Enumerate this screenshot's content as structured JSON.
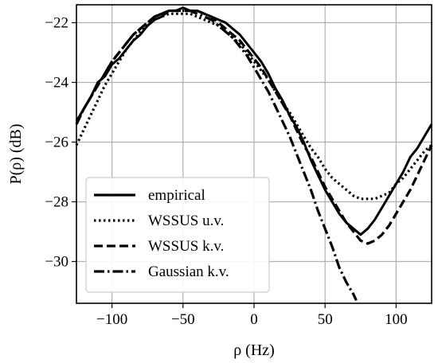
{
  "chart_data": {
    "type": "line",
    "xlabel": "ρ (Hz)",
    "ylabel": "P(ρ) (dB)",
    "xlim": [
      -125,
      125
    ],
    "ylim": [
      -31.4,
      -21.4
    ],
    "xticks": [
      -100,
      -50,
      0,
      50,
      100
    ],
    "xtick_labels": [
      "−100",
      "−50",
      "0",
      "50",
      "100"
    ],
    "yticks": [
      -22,
      -24,
      -26,
      -28,
      -30
    ],
    "ytick_labels": [
      "−22",
      "−24",
      "−26",
      "−28",
      "−30"
    ],
    "grid": true,
    "legend_position": "lower-left",
    "series": [
      {
        "name": "empirical",
        "style": "solid",
        "color": "#000000",
        "x": [
          -125,
          -120,
          -115,
          -110,
          -105,
          -100,
          -95,
          -90,
          -85,
          -80,
          -75,
          -70,
          -65,
          -60,
          -55,
          -50,
          -45,
          -40,
          -35,
          -30,
          -25,
          -20,
          -15,
          -10,
          -5,
          0,
          5,
          10,
          15,
          20,
          25,
          30,
          35,
          40,
          45,
          50,
          55,
          60,
          65,
          70,
          75,
          80,
          85,
          90,
          95,
          100,
          105,
          110,
          115,
          120,
          125
        ],
        "y": [
          -25.3,
          -24.9,
          -24.5,
          -24.0,
          -23.8,
          -23.4,
          -23.2,
          -22.9,
          -22.6,
          -22.4,
          -22.1,
          -21.9,
          -21.8,
          -21.6,
          -21.6,
          -21.5,
          -21.6,
          -21.6,
          -21.7,
          -21.8,
          -21.9,
          -22.0,
          -22.2,
          -22.4,
          -22.7,
          -23.0,
          -23.3,
          -23.7,
          -24.2,
          -24.6,
          -25.1,
          -25.5,
          -26.0,
          -26.6,
          -27.1,
          -27.6,
          -28.0,
          -28.4,
          -28.7,
          -28.9,
          -29.1,
          -28.9,
          -28.6,
          -28.2,
          -27.8,
          -27.4,
          -27.0,
          -26.5,
          -26.2,
          -25.8,
          -25.4
        ]
      },
      {
        "name": "WSSUS u.v.",
        "style": "dotted",
        "color": "#000000",
        "x": [
          -125,
          -120,
          -115,
          -110,
          -105,
          -100,
          -95,
          -90,
          -85,
          -80,
          -75,
          -70,
          -65,
          -60,
          -55,
          -50,
          -45,
          -40,
          -35,
          -30,
          -25,
          -20,
          -15,
          -10,
          -5,
          0,
          5,
          10,
          15,
          20,
          25,
          30,
          35,
          40,
          45,
          50,
          55,
          60,
          65,
          70,
          75,
          80,
          85,
          90,
          95,
          100,
          105,
          110,
          115,
          120,
          125
        ],
        "y": [
          -26.1,
          -25.6,
          -25.1,
          -24.6,
          -24.1,
          -23.7,
          -23.3,
          -22.9,
          -22.6,
          -22.3,
          -22.1,
          -21.9,
          -21.8,
          -21.7,
          -21.7,
          -21.7,
          -21.7,
          -21.8,
          -21.9,
          -22.0,
          -22.1,
          -22.3,
          -22.5,
          -22.7,
          -23.0,
          -23.3,
          -23.6,
          -23.9,
          -24.3,
          -24.7,
          -25.0,
          -25.4,
          -25.8,
          -26.2,
          -26.5,
          -26.9,
          -27.2,
          -27.4,
          -27.6,
          -27.8,
          -27.9,
          -27.9,
          -27.9,
          -27.8,
          -27.7,
          -27.4,
          -27.2,
          -26.9,
          -26.6,
          -26.3,
          -26.1
        ]
      },
      {
        "name": "WSSUS k.v.",
        "style": "dashed",
        "color": "#000000",
        "x": [
          -125,
          -120,
          -115,
          -110,
          -105,
          -100,
          -95,
          -90,
          -85,
          -80,
          -75,
          -70,
          -65,
          -60,
          -55,
          -50,
          -45,
          -40,
          -35,
          -30,
          -25,
          -20,
          -15,
          -10,
          -5,
          0,
          5,
          10,
          15,
          20,
          25,
          30,
          35,
          40,
          45,
          50,
          55,
          60,
          65,
          70,
          75,
          80,
          85,
          90,
          95,
          100,
          105,
          110,
          115,
          120,
          125
        ],
        "y": [
          -25.4,
          -24.9,
          -24.5,
          -24.1,
          -23.7,
          -23.3,
          -23.0,
          -22.7,
          -22.4,
          -22.2,
          -22.0,
          -21.8,
          -21.7,
          -21.6,
          -21.6,
          -21.6,
          -21.6,
          -21.6,
          -21.7,
          -21.8,
          -22.0,
          -22.2,
          -22.4,
          -22.6,
          -22.9,
          -23.2,
          -23.5,
          -23.9,
          -24.3,
          -24.7,
          -25.1,
          -25.6,
          -26.1,
          -26.5,
          -27.0,
          -27.5,
          -27.9,
          -28.3,
          -28.7,
          -29.0,
          -29.3,
          -29.4,
          -29.3,
          -29.1,
          -28.8,
          -28.4,
          -28.0,
          -27.6,
          -27.1,
          -26.6,
          -26.1
        ]
      },
      {
        "name": "Gaussian k.v.",
        "style": "dashdot",
        "color": "#000000",
        "x": [
          -125,
          -120,
          -115,
          -110,
          -105,
          -100,
          -95,
          -90,
          -85,
          -80,
          -75,
          -70,
          -65,
          -60,
          -55,
          -50,
          -45,
          -40,
          -35,
          -30,
          -25,
          -20,
          -15,
          -10,
          -5,
          0,
          5,
          10,
          15,
          20,
          25,
          30,
          35,
          40,
          45,
          50,
          55,
          60,
          65,
          70,
          72
        ],
        "y": [
          -25.4,
          -24.9,
          -24.5,
          -24.1,
          -23.7,
          -23.3,
          -23.0,
          -22.7,
          -22.4,
          -22.2,
          -22.0,
          -21.8,
          -21.7,
          -21.6,
          -21.6,
          -21.6,
          -21.6,
          -21.7,
          -21.8,
          -21.9,
          -22.1,
          -22.3,
          -22.5,
          -22.8,
          -23.1,
          -23.5,
          -23.9,
          -24.3,
          -24.8,
          -25.3,
          -25.8,
          -26.4,
          -27.0,
          -27.6,
          -28.3,
          -28.9,
          -29.5,
          -30.2,
          -30.7,
          -31.1,
          -31.3
        ]
      }
    ]
  }
}
